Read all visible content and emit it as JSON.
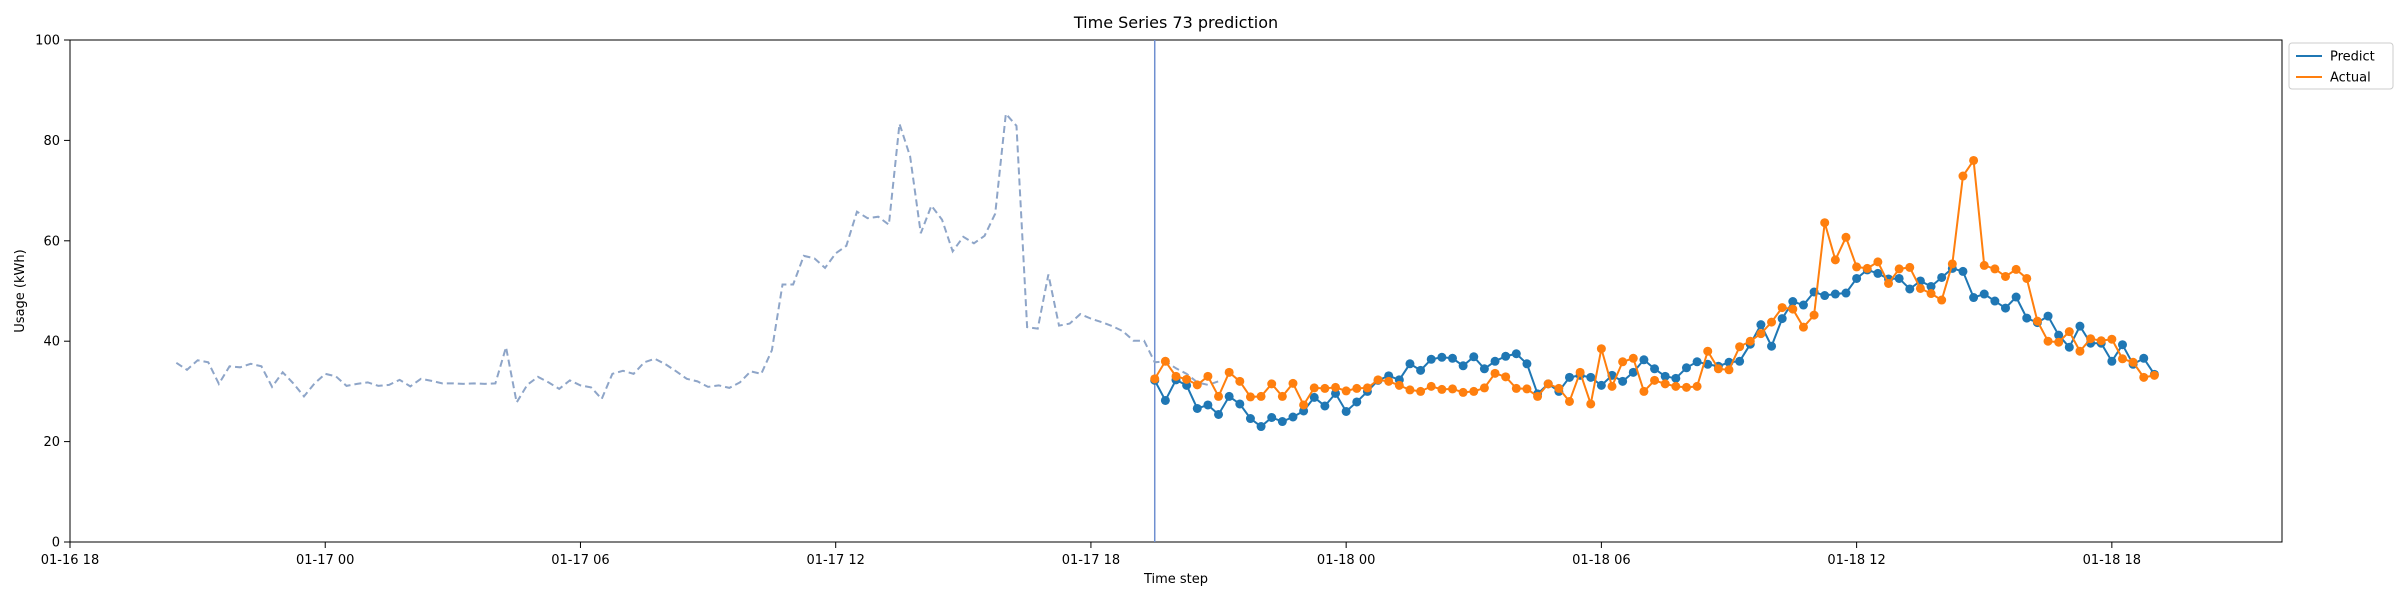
{
  "chart_data": {
    "type": "line",
    "title": "Time Series 73 prediction",
    "xlabel": "Time step",
    "ylabel": "Usage (kWh)",
    "ylim": [
      0,
      100
    ],
    "yticks": [
      0,
      20,
      40,
      60,
      80,
      100
    ],
    "x_start": "01-16 18:00",
    "x_end": "01-18 22:00",
    "x_step_minutes": 15,
    "xticks": [
      "01-16 18",
      "01-17 00",
      "01-17 06",
      "01-17 12",
      "01-17 18",
      "01-18 00",
      "01-18 06",
      "01-18 12",
      "01-18 18"
    ],
    "grid": false,
    "legend_position": "outside-top-right",
    "colors": {
      "history": "#8ea5c8",
      "predict": "#1f77b4",
      "actual": "#ff7f0e",
      "split_line": "#6f8fd0"
    },
    "split_time": "01-17 19:30",
    "history": {
      "start": "01-16 20:30",
      "interval_minutes": 15,
      "values": [
        35.7,
        34.3,
        36.2,
        35.8,
        31.5,
        35.0,
        34.8,
        35.5,
        35.0,
        30.9,
        33.8,
        31.6,
        29.0,
        31.6,
        33.5,
        33.0,
        31.1,
        31.5,
        31.8,
        31.1,
        31.3,
        32.3,
        31.0,
        32.5,
        32.1,
        31.6,
        31.6,
        31.5,
        31.6,
        31.5,
        31.6,
        38.8,
        27.8,
        31.3,
        32.9,
        31.8,
        30.5,
        32.2,
        31.2,
        30.8,
        28.5,
        33.5,
        34.1,
        33.5,
        35.8,
        36.5,
        35.4,
        34.0,
        32.5,
        32.0,
        30.9,
        31.2,
        30.7,
        31.8,
        34.0,
        33.5,
        38.2,
        51.3,
        51.3,
        57.0,
        56.5,
        54.6,
        57.5,
        59.0,
        65.8,
        64.5,
        64.8,
        63.2,
        83.3,
        76.8,
        61.5,
        67.0,
        64.2,
        57.9,
        60.8,
        59.5,
        61.0,
        65.4,
        85.3,
        82.9,
        42.8,
        42.5,
        53.3,
        43.1,
        43.5,
        45.4,
        44.5,
        43.8,
        43.0,
        42.0,
        40.1,
        40.1,
        35.8,
        36.0,
        34.6,
        33.5,
        31.8,
        31.3,
        32.0
      ]
    },
    "series": [
      {
        "name": "Predict",
        "start": "01-17 19:30",
        "interval_minutes": 15,
        "values": [
          32.2,
          28.2,
          32.3,
          31.2,
          26.6,
          27.3,
          25.4,
          29.0,
          27.5,
          24.6,
          23.0,
          24.8,
          24.0,
          24.9,
          26.1,
          28.8,
          27.1,
          29.6,
          26.0,
          27.9,
          30.0,
          32.2,
          33.1,
          32.3,
          35.5,
          34.2,
          36.4,
          36.8,
          36.6,
          35.1,
          36.9,
          34.5,
          36.0,
          37.0,
          37.5,
          35.5,
          29.5,
          31.5,
          30.0,
          32.8,
          33.2,
          32.8,
          31.2,
          33.2,
          32.0,
          33.8,
          36.3,
          34.5,
          33.0,
          32.6,
          34.7,
          35.9,
          35.4,
          35.0,
          35.8,
          36.0,
          39.4,
          43.3,
          39.0,
          44.5,
          47.9,
          47.2,
          49.8,
          49.1,
          49.4,
          49.6,
          52.5,
          54.2,
          53.5,
          52.4,
          52.5,
          50.4,
          52.0,
          50.9,
          52.7,
          54.5,
          53.9,
          48.7,
          49.4,
          48.0,
          46.6,
          48.8,
          44.6,
          43.7,
          45.0,
          41.2,
          38.8,
          43.0,
          39.6,
          39.6,
          36.0,
          39.3,
          35.4,
          36.6,
          33.4
        ]
      },
      {
        "name": "Actual",
        "start": "01-17 19:30",
        "interval_minutes": 15,
        "values": [
          32.5,
          36.0,
          33.0,
          32.4,
          31.3,
          33.0,
          29.0,
          33.8,
          32.0,
          28.9,
          29.0,
          31.5,
          29.0,
          31.6,
          27.3,
          30.7,
          30.6,
          30.8,
          30.1,
          30.6,
          30.7,
          32.3,
          32.0,
          31.2,
          30.3,
          30.0,
          31.0,
          30.4,
          30.5,
          29.8,
          30.0,
          30.7,
          33.6,
          32.9,
          30.6,
          30.5,
          29.0,
          31.5,
          30.6,
          28.0,
          33.8,
          27.5,
          38.5,
          31.0,
          35.9,
          36.6,
          30.0,
          32.2,
          31.5,
          31.0,
          30.8,
          31.0,
          38.0,
          34.5,
          34.3,
          38.9,
          40.0,
          41.5,
          43.8,
          46.7,
          46.4,
          42.8,
          45.2,
          63.6,
          56.2,
          60.7,
          54.8,
          54.5,
          55.8,
          51.5,
          54.4,
          54.7,
          50.5,
          49.5,
          48.2,
          55.4,
          72.9,
          76.0,
          55.1,
          54.4,
          52.9,
          54.3,
          52.5,
          44.0,
          40.0,
          39.8,
          41.9,
          38.0,
          40.5,
          40.1,
          40.4,
          36.5,
          35.8,
          32.8,
          33.2
        ]
      }
    ]
  }
}
